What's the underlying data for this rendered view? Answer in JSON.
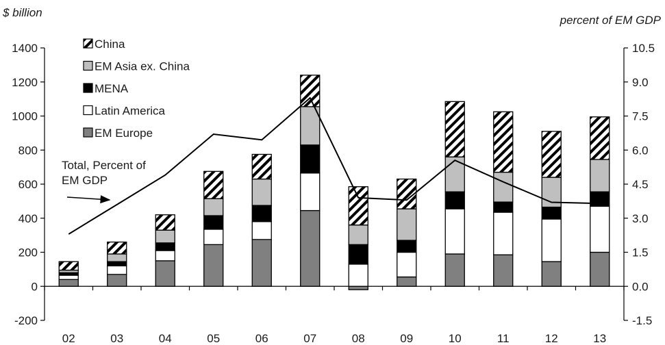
{
  "chart_data": {
    "type": "bar",
    "stacked": true,
    "y_left_label": "$ billion",
    "y_right_label": "percent of EM GDP",
    "categories": [
      "02",
      "03",
      "04",
      "05",
      "06",
      "07",
      "08",
      "09",
      "10",
      "11",
      "12",
      "13"
    ],
    "ylim_left": [
      -200,
      1400
    ],
    "yticks_left": [
      "-200",
      "0",
      "200",
      "400",
      "600",
      "800",
      "1000",
      "1200",
      "1400"
    ],
    "ylim_right": [
      -1.5,
      10.5
    ],
    "yticks_right": [
      "-1.5",
      "0.0",
      "1.5",
      "3.0",
      "4.5",
      "6.0",
      "7.5",
      "9.0",
      "10.5"
    ],
    "grid": false,
    "legend_placement": "top-left",
    "series": [
      {
        "name": "EM Europe",
        "color": "#808080",
        "pattern": "solid",
        "values": [
          40,
          70,
          150,
          245,
          275,
          445,
          -20,
          55,
          190,
          185,
          145,
          200
        ]
      },
      {
        "name": "Latin America",
        "color": "#ffffff",
        "pattern": "solid",
        "values": [
          25,
          50,
          60,
          90,
          105,
          220,
          130,
          145,
          265,
          250,
          250,
          270
        ]
      },
      {
        "name": "MENA",
        "color": "#000000",
        "pattern": "solid",
        "values": [
          15,
          25,
          45,
          80,
          95,
          165,
          115,
          70,
          100,
          60,
          70,
          85
        ]
      },
      {
        "name": "EM Asia ex. China",
        "color": "#bfbfbf",
        "pattern": "solid",
        "values": [
          15,
          45,
          75,
          100,
          155,
          225,
          115,
          185,
          205,
          175,
          175,
          190
        ]
      },
      {
        "name": "China",
        "color": "#000000",
        "pattern": "hatched",
        "values": [
          50,
          70,
          90,
          160,
          145,
          185,
          225,
          175,
          325,
          355,
          270,
          250
        ]
      }
    ],
    "line_series": {
      "name": "Total, Percent of EM GDP",
      "axis": "right",
      "values": [
        2.3,
        3.6,
        4.9,
        6.7,
        6.45,
        8.3,
        3.9,
        3.8,
        5.55,
        4.6,
        3.7,
        3.65
      ]
    },
    "legend_order": [
      "China",
      "EM Asia ex. China",
      "MENA",
      "Latin America",
      "EM Europe"
    ],
    "annotation": {
      "line1": "Total, Percent of",
      "line2": "EM GDP"
    }
  }
}
